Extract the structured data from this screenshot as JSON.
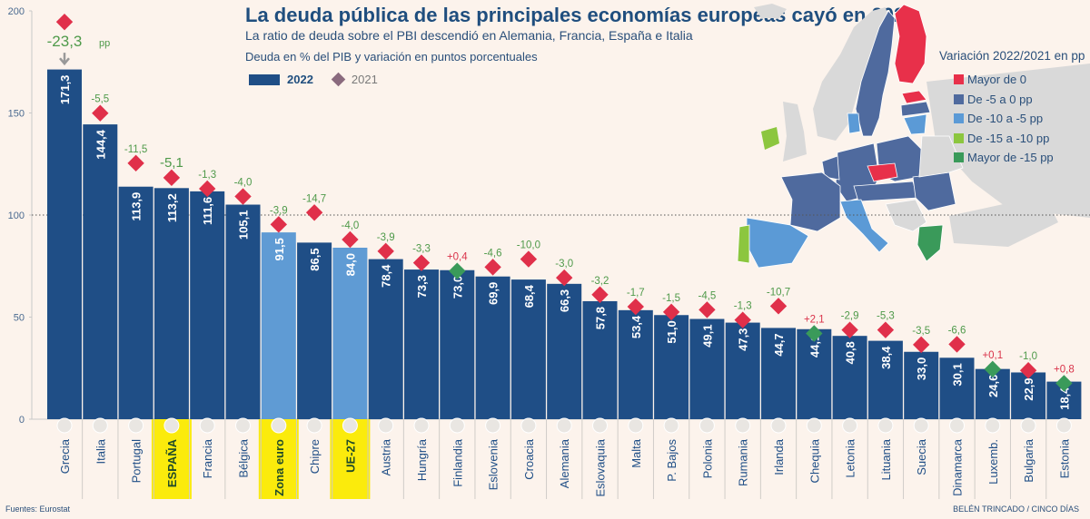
{
  "header": {
    "title": "La deuda pública de las principales economías europeas cayó en 2022",
    "subtitle": "La ratio de deuda sobre el PBI descendió en Alemania, Francia, España e Italia",
    "units": "Deuda en % del PIB y variación en puntos porcentuales"
  },
  "legend": {
    "bar_label": "2022",
    "marker_label": "2021"
  },
  "map_legend": {
    "title": "Variación 2022/2021 en pp",
    "items": [
      {
        "label": "Mayor de 0",
        "color": "#e8304a"
      },
      {
        "label": "De -5 a 0 pp",
        "color": "#4f6a9e"
      },
      {
        "label": "De -10 a -5 pp",
        "color": "#5b9ad6"
      },
      {
        "label": "De -15 a -10 pp",
        "color": "#8cc63f"
      },
      {
        "label": "Mayor de -15 pp",
        "color": "#3a9a5a"
      }
    ]
  },
  "footer": {
    "source": "Fuentes: Eurostat",
    "credit": "BELÉN TRINCADO / CINCO DÍAS"
  },
  "colors": {
    "bar_dark": "#1f4e86",
    "bar_light": "#5f9bd4",
    "marker_decrease": "#e0304a",
    "marker_increase": "#3a9a5a",
    "change_negative_text": "#4f9a4a",
    "change_positive_text": "#d9334a",
    "highlight": "#fbeb0c",
    "axis_text": "#4a6a90"
  },
  "chart_data": {
    "type": "bar",
    "title": "La deuda pública de las principales economías europeas cayó en 2022",
    "ylabel": "Deuda en % del PIB",
    "ylim": [
      0,
      200
    ],
    "yticks": [
      0,
      50,
      100,
      150,
      200
    ],
    "reference_line": 100,
    "categories": [
      "Grecia",
      "Italia",
      "Portugal",
      "ESPAÑA",
      "Francia",
      "Bélgica",
      "Zona euro",
      "Chipre",
      "UE-27",
      "Austria",
      "Hungría",
      "Finlandia",
      "Eslovenia",
      "Croacia",
      "Alemania",
      "Eslovaquia",
      "Malta",
      "P. Bajos",
      "Polonia",
      "Rumania",
      "Irlanda",
      "Chequia",
      "Letonia",
      "Lituania",
      "Suecia",
      "Dinamarca",
      "Luxemb.",
      "Bulgaria",
      "Estonia"
    ],
    "highlighted": [
      "ESPAÑA",
      "Zona euro",
      "UE-27"
    ],
    "aggregates": [
      "Zona euro",
      "UE-27"
    ],
    "series": [
      {
        "name": "2022",
        "values": [
          171.3,
          144.4,
          113.9,
          113.2,
          111.6,
          105.1,
          91.5,
          86.5,
          84.0,
          78.4,
          73.3,
          73.0,
          69.9,
          68.4,
          66.3,
          57.8,
          53.4,
          51.0,
          49.1,
          47.3,
          44.7,
          44.1,
          40.8,
          38.4,
          33.0,
          30.1,
          24.6,
          22.9,
          18.4
        ]
      },
      {
        "name": "2021",
        "values": [
          194.6,
          149.9,
          125.4,
          118.3,
          112.9,
          109.1,
          95.4,
          101.2,
          88.0,
          82.3,
          76.6,
          72.6,
          74.5,
          78.4,
          69.3,
          61.0,
          55.1,
          52.5,
          53.6,
          48.6,
          55.4,
          42.0,
          43.7,
          43.7,
          36.5,
          36.7,
          24.5,
          23.9,
          17.6
        ]
      }
    ],
    "changes": [
      "-23,3",
      "-5,5",
      "-11,5",
      "-5,1",
      "-1,3",
      "-4,0",
      "-3,9",
      "-14,7",
      "-4,0",
      "-3,9",
      "-3,3",
      "+0,4",
      "-4,6",
      "-10,0",
      "-3,0",
      "-3,2",
      "-1,7",
      "-1,5",
      "-4,5",
      "-1,3",
      "-10,7",
      "+2,1",
      "-2,9",
      "-5,3",
      "-3,5",
      "-6,6",
      "+0,1",
      "-1,0",
      "+0,8"
    ],
    "value_labels": [
      "171,3",
      "144,4",
      "113,9",
      "113,2",
      "111,6",
      "105,1",
      "91,5",
      "86,5",
      "84,0",
      "78,4",
      "73,3",
      "73,0",
      "69,9",
      "68,4",
      "66,3",
      "57,8",
      "53,4",
      "51,0",
      "49,1",
      "47,3",
      "44,7",
      "44,1",
      "40,8",
      "38,4",
      "33,0",
      "30,1",
      "24,6",
      "22,9",
      "18,4"
    ],
    "callout": {
      "text": "-23,3",
      "unit": "pp",
      "category": "Grecia"
    }
  }
}
